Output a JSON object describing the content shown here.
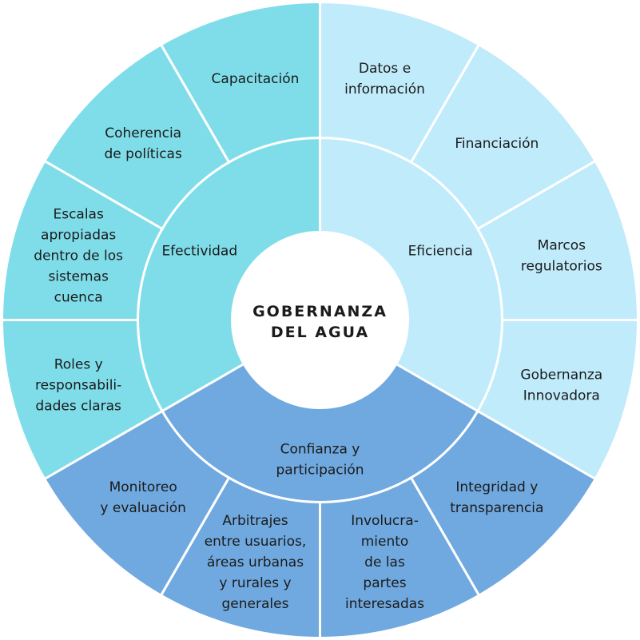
{
  "center": {
    "lines": [
      "GOBERNANZA",
      "DEL AGUA"
    ],
    "color": "#ffffff"
  },
  "colors": {
    "efectividad": "#7fdde9",
    "eficiencia": "#c0ebfb",
    "confianza": "#70a9df",
    "divider": "#ffffff"
  },
  "dimensions": [
    {
      "id": "efectividad",
      "label": [
        "Efectividad"
      ],
      "principles": [
        [
          "Capacitación"
        ],
        [
          "Coherencia",
          "de políticas"
        ],
        [
          "Escalas",
          "apropiadas",
          "dentro de los",
          "sistemas",
          "cuenca"
        ],
        [
          "Roles y",
          "responsabili-",
          "dades claras"
        ]
      ]
    },
    {
      "id": "eficiencia",
      "label": [
        "Eficiencia"
      ],
      "principles": [
        [
          "Datos e",
          "información"
        ],
        [
          "Financiación"
        ],
        [
          "Marcos",
          "regulatorios"
        ],
        [
          "Gobernanza",
          "Innovadora"
        ]
      ]
    },
    {
      "id": "confianza",
      "label": [
        "Confianza y",
        "participación"
      ],
      "principles": [
        [
          "Integridad y",
          "transparencia"
        ],
        [
          "Involucra-",
          "miento",
          "de las",
          "partes",
          "interesadas"
        ],
        [
          "Arbitrajes",
          "entre usuarios,",
          "áreas urbanas",
          "y rurales y",
          "generales"
        ],
        [
          "Monitoreo",
          "y evaluación"
        ]
      ]
    }
  ]
}
